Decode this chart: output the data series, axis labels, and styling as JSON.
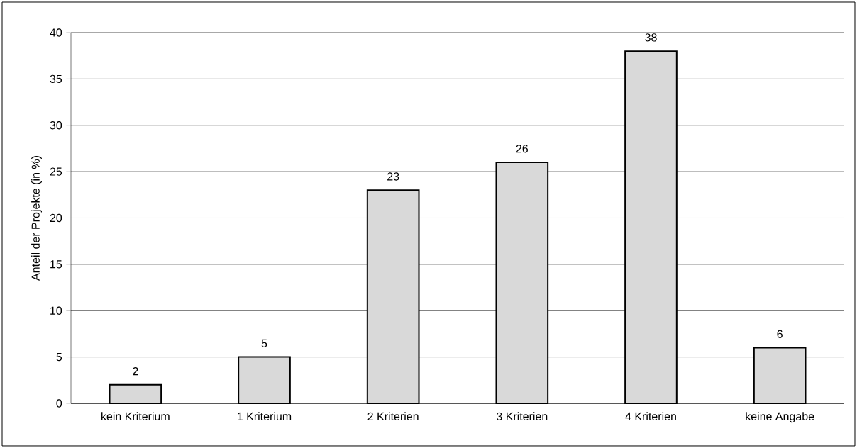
{
  "chart_data": {
    "type": "bar",
    "ylabel": "Anteil der Projekte (in %)",
    "categories": [
      "kein Kriterium",
      "1 Kriterium",
      "2 Kriterien",
      "3 Kriterien",
      "4 Kriterien",
      "keine Angabe"
    ],
    "values": [
      2,
      5,
      23,
      26,
      38,
      6
    ],
    "color": "#d9d9d9",
    "ylim": [
      0,
      40
    ],
    "yticks": [
      0,
      5,
      10,
      15,
      20,
      25,
      30,
      35,
      40
    ],
    "grid": "y",
    "data_labels": true
  }
}
